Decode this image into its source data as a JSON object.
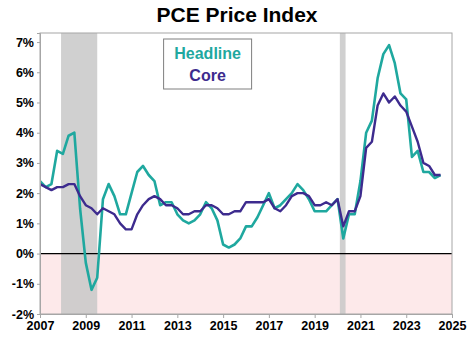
{
  "chart_data": {
    "type": "line",
    "title": "PCE Price Index",
    "x": [
      2007.0,
      2007.25,
      2007.5,
      2007.75,
      2008.0,
      2008.25,
      2008.5,
      2008.75,
      2009.0,
      2009.25,
      2009.5,
      2009.75,
      2010.0,
      2010.25,
      2010.5,
      2010.75,
      2011.0,
      2011.25,
      2011.5,
      2011.75,
      2012.0,
      2012.25,
      2012.5,
      2012.75,
      2013.0,
      2013.25,
      2013.5,
      2013.75,
      2014.0,
      2014.25,
      2014.5,
      2014.75,
      2015.0,
      2015.25,
      2015.5,
      2015.75,
      2016.0,
      2016.25,
      2016.5,
      2016.75,
      2017.0,
      2017.25,
      2017.5,
      2017.75,
      2018.0,
      2018.25,
      2018.5,
      2018.75,
      2019.0,
      2019.25,
      2019.5,
      2019.75,
      2020.0,
      2020.25,
      2020.5,
      2020.75,
      2021.0,
      2021.25,
      2021.5,
      2021.75,
      2022.0,
      2022.25,
      2022.5,
      2022.75,
      2023.0,
      2023.25,
      2023.5,
      2023.75,
      2024.0,
      2024.25,
      2024.5
    ],
    "series": [
      {
        "name": "Headline",
        "color": "#1fa89f",
        "values": [
          2.4,
          2.2,
          2.3,
          3.4,
          3.3,
          3.9,
          4.0,
          1.5,
          -0.3,
          -1.2,
          -0.8,
          1.8,
          2.3,
          1.9,
          1.3,
          1.3,
          2.0,
          2.7,
          2.9,
          2.6,
          2.4,
          1.6,
          1.7,
          1.7,
          1.3,
          1.1,
          1.0,
          1.1,
          1.3,
          1.7,
          1.5,
          1.1,
          0.3,
          0.2,
          0.3,
          0.5,
          0.9,
          0.9,
          1.2,
          1.6,
          2.0,
          1.5,
          1.6,
          1.8,
          2.0,
          2.3,
          2.1,
          1.8,
          1.4,
          1.4,
          1.4,
          1.6,
          1.8,
          0.5,
          1.3,
          1.3,
          2.4,
          4.0,
          4.4,
          5.8,
          6.6,
          6.9,
          6.3,
          5.3,
          5.1,
          3.2,
          3.4,
          2.7,
          2.7,
          2.5,
          2.6
        ]
      },
      {
        "name": "Core",
        "color": "#3d2b8e",
        "values": [
          2.3,
          2.2,
          2.1,
          2.2,
          2.2,
          2.3,
          2.3,
          1.9,
          1.6,
          1.5,
          1.3,
          1.5,
          1.4,
          1.3,
          1.0,
          0.8,
          0.8,
          1.3,
          1.6,
          1.8,
          1.9,
          1.8,
          1.6,
          1.6,
          1.5,
          1.3,
          1.3,
          1.4,
          1.4,
          1.6,
          1.6,
          1.5,
          1.3,
          1.3,
          1.4,
          1.4,
          1.7,
          1.7,
          1.7,
          1.7,
          1.8,
          1.5,
          1.4,
          1.6,
          1.9,
          2.0,
          2.0,
          1.9,
          1.6,
          1.6,
          1.7,
          1.6,
          1.8,
          0.9,
          1.4,
          1.4,
          1.9,
          3.5,
          3.7,
          4.9,
          5.3,
          5.0,
          5.2,
          4.9,
          4.7,
          4.2,
          3.7,
          3.0,
          2.9,
          2.6,
          2.6
        ]
      }
    ],
    "recessions": [
      [
        2007.92,
        2009.5
      ],
      [
        2020.1,
        2020.35
      ]
    ],
    "xlim": [
      2007,
      2025
    ],
    "xticks": [
      2007,
      2009,
      2011,
      2013,
      2015,
      2017,
      2019,
      2021,
      2023,
      2025
    ],
    "ylim": [
      -2,
      7.3
    ],
    "yticks": [
      {
        "value": -2,
        "label": "-2%"
      },
      {
        "value": -1,
        "label": "-1%"
      },
      {
        "value": 0,
        "label": "0%"
      },
      {
        "value": 1,
        "label": "1%"
      },
      {
        "value": 2,
        "label": "2%"
      },
      {
        "value": 3,
        "label": "3%"
      },
      {
        "value": 4,
        "label": "4%"
      },
      {
        "value": 5,
        "label": "5%"
      },
      {
        "value": 6,
        "label": "6%"
      },
      {
        "value": 7,
        "label": "7%"
      }
    ],
    "grid": false,
    "legend": "upper center"
  }
}
